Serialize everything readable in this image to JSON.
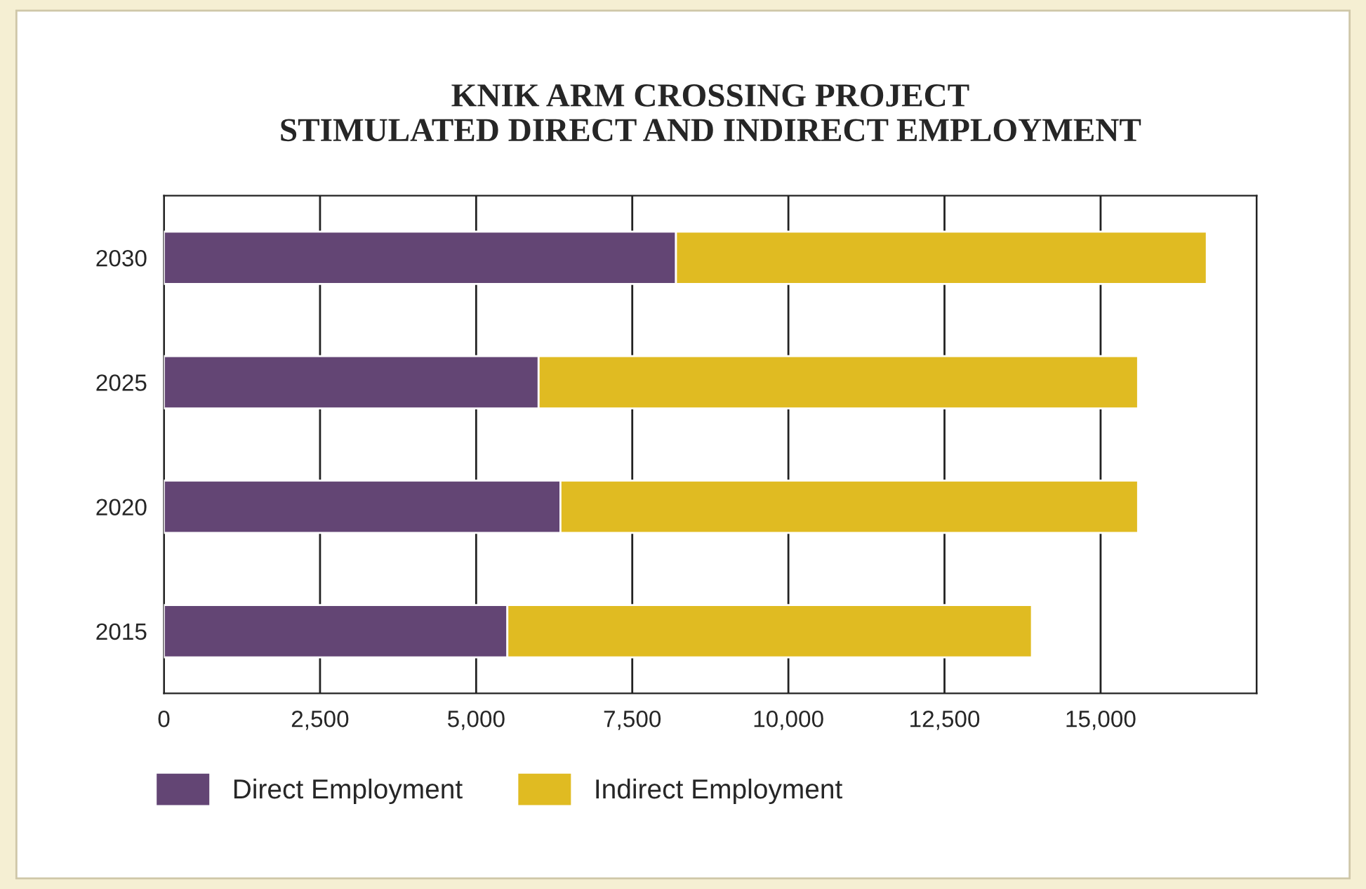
{
  "chart_data": {
    "type": "bar",
    "orientation": "horizontal",
    "stacked": true,
    "title": "KNIK ARM CROSSING PROJECT\nSTIMULATED DIRECT AND INDIRECT EMPLOYMENT",
    "categories": [
      "2030",
      "2025",
      "2020",
      "2015"
    ],
    "series": [
      {
        "name": "Direct Employment",
        "color": "#634574",
        "values": [
          8200,
          6000,
          6350,
          5500
        ]
      },
      {
        "name": "Indirect Employment",
        "color": "#e0bb22",
        "values": [
          8500,
          9600,
          9250,
          8400
        ]
      }
    ],
    "xlim": [
      0,
      17500
    ],
    "xticks": [
      {
        "value": 0,
        "label": "0"
      },
      {
        "value": 2500,
        "label": "2,500"
      },
      {
        "value": 5000,
        "label": "5,000"
      },
      {
        "value": 7500,
        "label": "7,500"
      },
      {
        "value": 10000,
        "label": "10,000"
      },
      {
        "value": 12500,
        "label": "12,500"
      },
      {
        "value": 15000,
        "label": "15,000"
      },
      {
        "value": 17500,
        "label": null
      }
    ],
    "grid": "x",
    "legend": "bottom left"
  }
}
